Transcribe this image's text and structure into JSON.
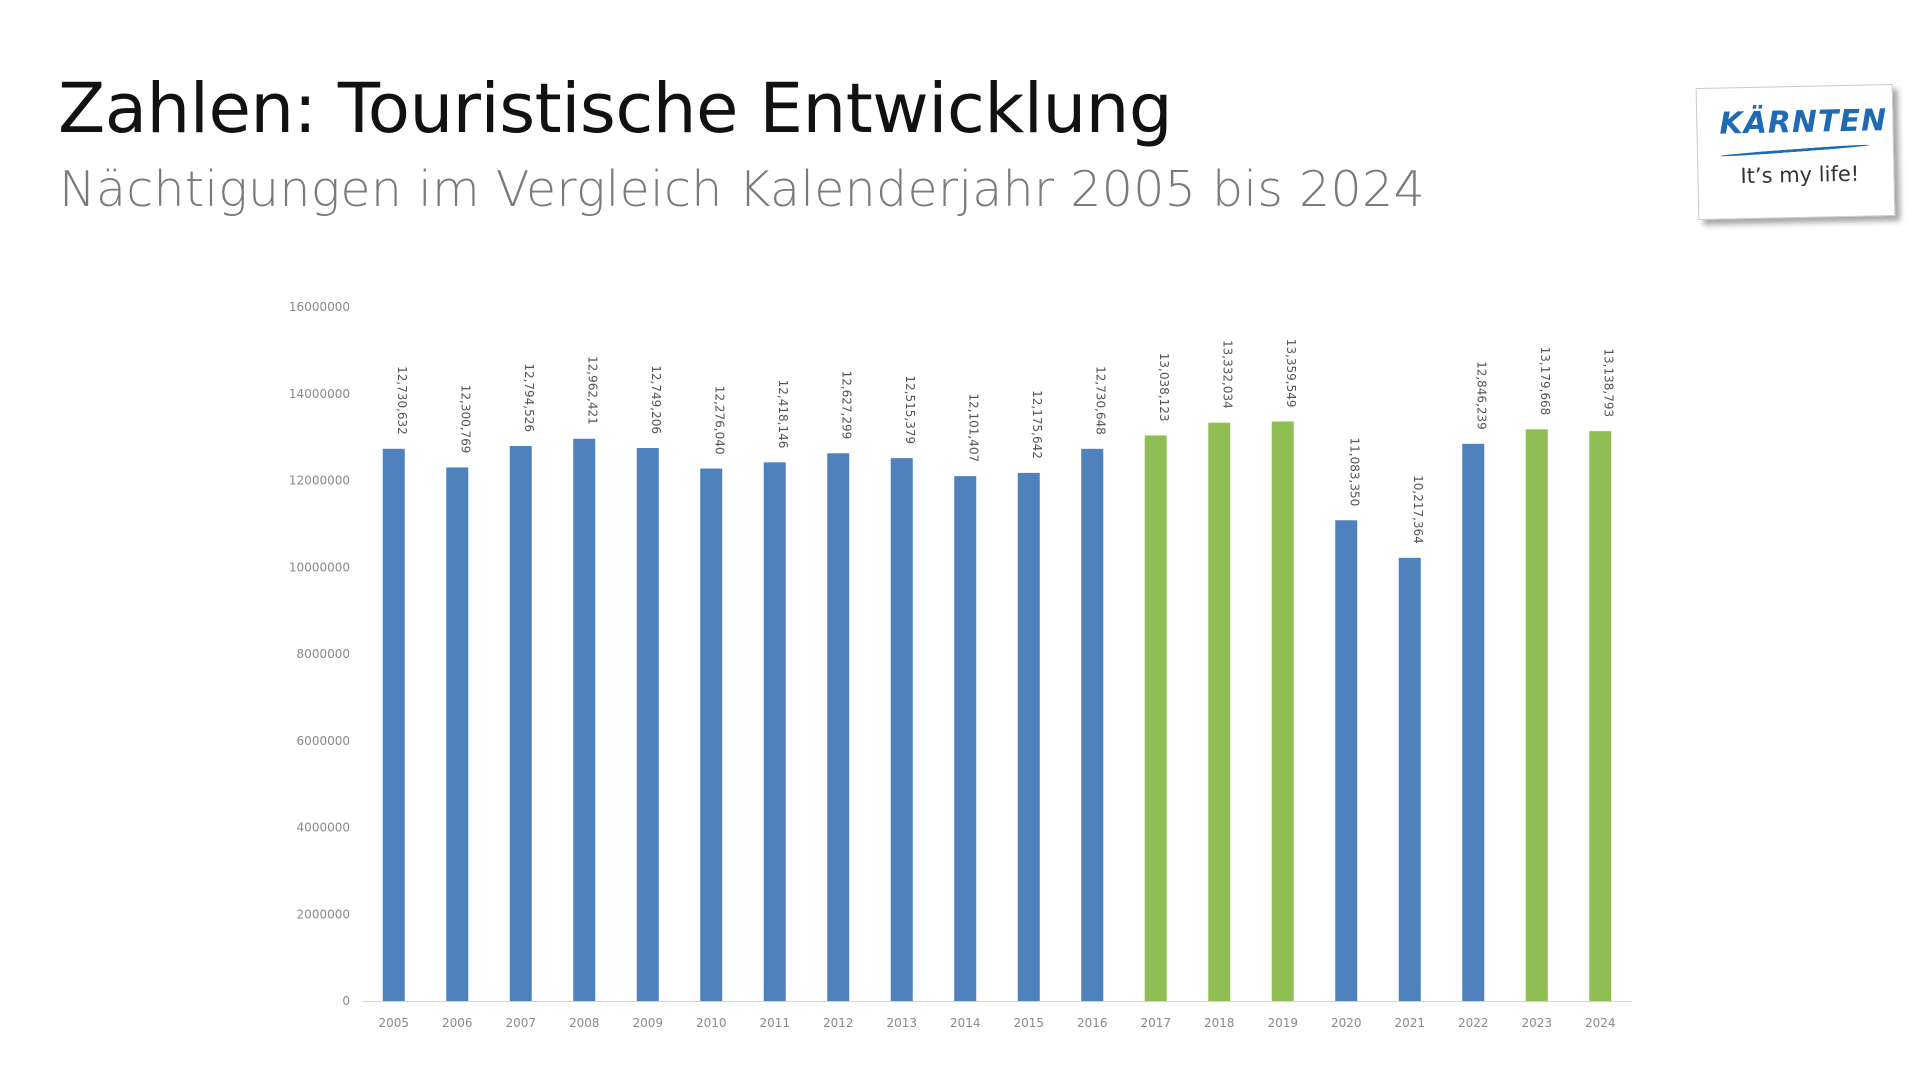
{
  "header": {
    "title": "Zahlen: Touristische Entwicklung",
    "subtitle": "Nächtigungen im Vergleich Kalenderjahr 2005 bis 2024"
  },
  "logo": {
    "brand": "KÄRNTEN",
    "tagline": "It’s my life!",
    "color": "#1e6ab3"
  },
  "chart_data": {
    "type": "bar",
    "title": "",
    "xlabel": "",
    "ylabel": "",
    "ylim": [
      0,
      16000000
    ],
    "yticks": [
      0,
      2000000,
      4000000,
      6000000,
      8000000,
      10000000,
      12000000,
      14000000,
      16000000
    ],
    "ytick_labels": [
      "0",
      "2000000",
      "4000000",
      "6000000",
      "8000000",
      "10000000",
      "12000000",
      "14000000",
      "16000000"
    ],
    "grid": false,
    "legend": "none",
    "colors": {
      "blue": "#4f81bd",
      "green": "#8fbf54"
    },
    "categories": [
      "2005",
      "2006",
      "2007",
      "2008",
      "2009",
      "2010",
      "2011",
      "2012",
      "2013",
      "2014",
      "2015",
      "2016",
      "2017",
      "2018",
      "2019",
      "2020",
      "2021",
      "2022",
      "2023",
      "2024"
    ],
    "values": [
      12730632,
      12300769,
      12794526,
      12962421,
      12749206,
      12276040,
      12418146,
      12627299,
      12515379,
      12101407,
      12175642,
      12730648,
      13038123,
      13332034,
      13359549,
      11083350,
      10217364,
      12846239,
      13179668,
      13138793
    ],
    "value_labels": [
      "12,730,632",
      "12,300,769",
      "12,794,526",
      "12,962,421",
      "12,749,206",
      "12,276,040",
      "12,418,146",
      "12,627,299",
      "12,515,379",
      "12,101,407",
      "12,175,642",
      "12,730,648",
      "13,038,123",
      "13,332,034",
      "13,359,549",
      "11,083,350",
      "10,217,364",
      "12,846,239",
      "13,179,668",
      "13,138,793"
    ],
    "bar_colors": [
      "blue",
      "blue",
      "blue",
      "blue",
      "blue",
      "blue",
      "blue",
      "blue",
      "blue",
      "blue",
      "blue",
      "blue",
      "green",
      "green",
      "green",
      "blue",
      "blue",
      "blue",
      "green",
      "green"
    ]
  }
}
